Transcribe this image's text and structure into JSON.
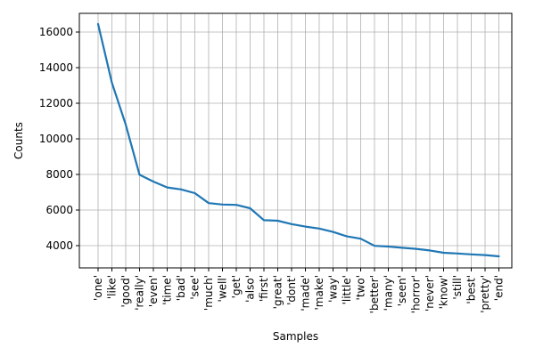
{
  "chart_data": {
    "type": "line",
    "xlabel": "Samples",
    "ylabel": "Counts",
    "categories": [
      "'one'",
      "'like'",
      "'good'",
      "'really'",
      "'even'",
      "'time'",
      "'bad'",
      "'see'",
      "'much'",
      "'well'",
      "'get'",
      "'also'",
      "'first'",
      "'great'",
      "'dont'",
      "'made'",
      "'make'",
      "'way'",
      "'little'",
      "'two'",
      "'better'",
      "'many'",
      "'seen'",
      "'horror'",
      "'never'",
      "'know'",
      "'still'",
      "'best'",
      "'pretty'",
      "'end'"
    ],
    "series": [
      {
        "color": "#1f77b4",
        "values": [
          16450,
          13150,
          10800,
          7980,
          7600,
          7270,
          7160,
          6950,
          6390,
          6310,
          6290,
          6100,
          5430,
          5400,
          5210,
          5070,
          4960,
          4770,
          4520,
          4390,
          3990,
          3950,
          3880,
          3820,
          3730,
          3600,
          3560,
          3510,
          3470,
          3400
        ]
      }
    ],
    "ylim": [
      2750,
      17050
    ],
    "yticks": [
      4000,
      6000,
      8000,
      10000,
      12000,
      14000,
      16000
    ],
    "ytick_labels": [
      "4000",
      "6000",
      "8000",
      "10000",
      "12000",
      "14000",
      "16000"
    ],
    "grid": true,
    "legend": "none"
  }
}
